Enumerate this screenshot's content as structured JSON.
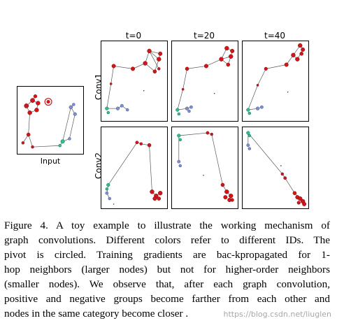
{
  "figure": {
    "input_label": "Input",
    "columns": [
      "t=0",
      "t=20",
      "t=40"
    ],
    "rows": [
      "Conv1",
      "Conv2"
    ],
    "colors": {
      "red": "#d0151b",
      "blue": "#7f8fcf",
      "teal": "#2fbf8f",
      "pivot": "#d0151b"
    }
  },
  "caption": {
    "lines": [
      "Figure 4. A toy example to illustrate the working mechanism of",
      "graph convolutions.  Different colors refer to different IDs.  The",
      "pivot is circled.  Training gradients are bac-kpropagated for 1-",
      "hop neighbors (larger nodes) but not for higher-order neighbors",
      "(smaller nodes).  We observe that, after each graph convolution,",
      "positive and negative groups become farther from each other and",
      "nodes in the same category become closer ."
    ]
  },
  "watermark": "https://blog.csdn.net/liuglen"
}
